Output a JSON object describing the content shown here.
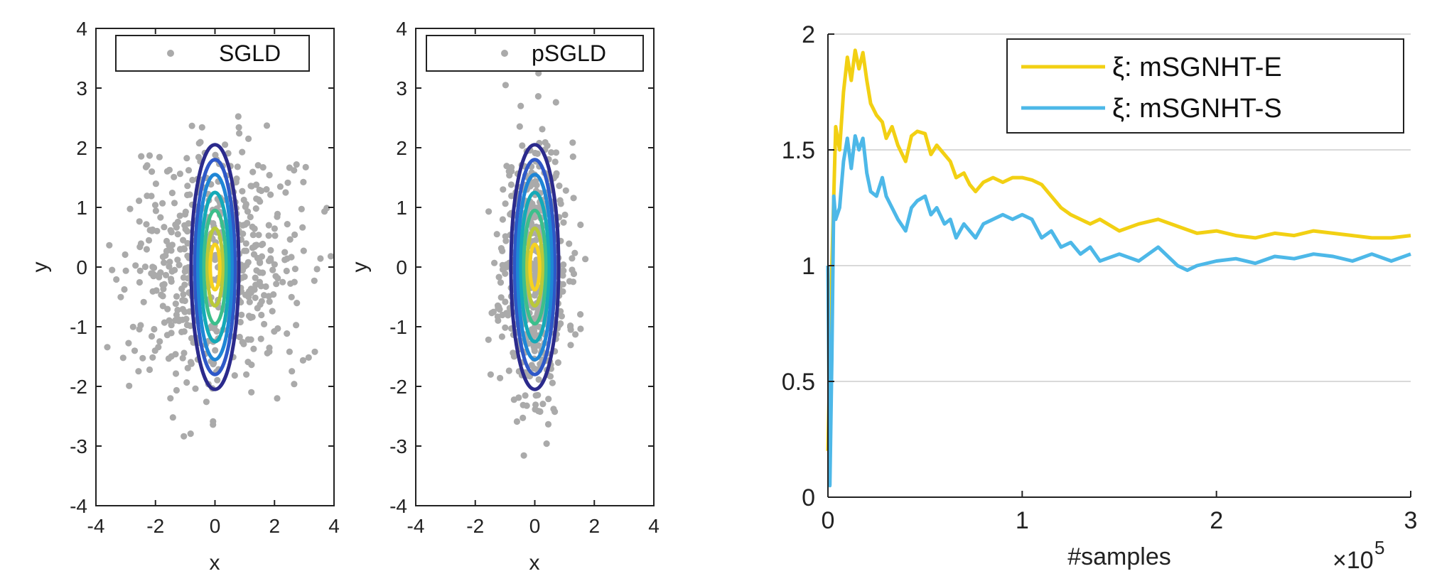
{
  "chart_data": [
    {
      "type": "scatter",
      "panel": "left",
      "xlabel": "x",
      "ylabel": "y",
      "xlim": [
        -4,
        4
      ],
      "ylim": [
        -4,
        4
      ],
      "xticks": [
        "-4",
        "-2",
        "0",
        "2",
        "4"
      ],
      "yticks": [
        "-4",
        "-3",
        "-2",
        "-1",
        "0",
        "1",
        "2",
        "3",
        "4"
      ],
      "legend": {
        "label": "SGLD",
        "placement": "top"
      },
      "point_color": "#aaaaaa",
      "points": {
        "count": 600,
        "distribution": "gaussian",
        "mean": [
          0,
          0
        ],
        "std": [
          1.45,
          1.0
        ],
        "seed": 7
      },
      "contours": {
        "center": [
          0,
          0
        ],
        "semi_axes": [
          [
            0.8,
            2.05
          ],
          [
            0.67,
            1.8
          ],
          [
            0.57,
            1.55
          ],
          [
            0.47,
            1.25
          ],
          [
            0.37,
            0.95
          ],
          [
            0.26,
            0.65
          ],
          [
            0.16,
            0.38
          ]
        ],
        "colors": [
          "#2b2a8c",
          "#2e58c8",
          "#1f86d6",
          "#14aab8",
          "#3cbf8c",
          "#b9c93a",
          "#f6d21f"
        ]
      },
      "grid": false
    },
    {
      "type": "scatter",
      "panel": "middle",
      "xlabel": "x",
      "ylabel": "y",
      "xlim": [
        -4,
        4
      ],
      "ylim": [
        -4,
        4
      ],
      "xticks": [
        "-4",
        "-2",
        "0",
        "2",
        "4"
      ],
      "yticks": [
        "-4",
        "-3",
        "-2",
        "-1",
        "0",
        "1",
        "2",
        "3",
        "4"
      ],
      "legend": {
        "label": "pSGLD",
        "placement": "top"
      },
      "point_color": "#aaaaaa",
      "points": {
        "count": 600,
        "distribution": "gaussian",
        "mean": [
          0,
          0
        ],
        "std": [
          0.55,
          1.05
        ],
        "seed": 11
      },
      "contours": {
        "center": [
          0,
          0
        ],
        "semi_axes": [
          [
            0.8,
            2.05
          ],
          [
            0.67,
            1.8
          ],
          [
            0.57,
            1.55
          ],
          [
            0.47,
            1.25
          ],
          [
            0.37,
            0.95
          ],
          [
            0.26,
            0.65
          ],
          [
            0.16,
            0.38
          ]
        ],
        "colors": [
          "#2b2a8c",
          "#2e58c8",
          "#1f86d6",
          "#14aab8",
          "#3cbf8c",
          "#b9c93a",
          "#f6d21f"
        ]
      },
      "grid": false
    },
    {
      "type": "line",
      "panel": "right",
      "xlabel": "#samples",
      "x_multiplier": "×10",
      "x_multiplier_exp": "5",
      "xlim": [
        0,
        3
      ],
      "ylim": [
        0,
        2
      ],
      "xticks": [
        "0",
        "1",
        "2",
        "3"
      ],
      "yticks": [
        "0",
        "0.5",
        "1",
        "1.5",
        "2"
      ],
      "grid": "horizontal",
      "legend_placement": "top-right",
      "series": [
        {
          "name": "ξ: mSGNHT-E",
          "color": "#f2d013",
          "x": [
            0,
            0.02,
            0.04,
            0.06,
            0.08,
            0.1,
            0.12,
            0.14,
            0.16,
            0.18,
            0.2,
            0.22,
            0.25,
            0.28,
            0.3,
            0.33,
            0.36,
            0.4,
            0.43,
            0.46,
            0.5,
            0.53,
            0.56,
            0.6,
            0.63,
            0.66,
            0.7,
            0.73,
            0.76,
            0.8,
            0.85,
            0.9,
            0.95,
            1.0,
            1.05,
            1.1,
            1.15,
            1.2,
            1.25,
            1.3,
            1.35,
            1.4,
            1.5,
            1.6,
            1.7,
            1.8,
            1.9,
            2.0,
            2.1,
            2.2,
            2.3,
            2.4,
            2.5,
            2.6,
            2.7,
            2.8,
            2.9,
            3.0
          ],
          "y": [
            0.2,
            1.0,
            1.6,
            1.5,
            1.75,
            1.9,
            1.8,
            1.93,
            1.85,
            1.92,
            1.8,
            1.7,
            1.65,
            1.62,
            1.55,
            1.6,
            1.52,
            1.45,
            1.56,
            1.58,
            1.57,
            1.48,
            1.52,
            1.48,
            1.45,
            1.38,
            1.4,
            1.35,
            1.32,
            1.36,
            1.38,
            1.36,
            1.38,
            1.38,
            1.37,
            1.35,
            1.3,
            1.25,
            1.22,
            1.2,
            1.18,
            1.2,
            1.15,
            1.18,
            1.2,
            1.17,
            1.14,
            1.15,
            1.13,
            1.12,
            1.14,
            1.13,
            1.15,
            1.14,
            1.13,
            1.12,
            1.12,
            1.13
          ]
        },
        {
          "name": "ξ: mSGNHT-S",
          "color": "#4db8e8",
          "x": [
            0,
            0.01,
            0.02,
            0.03,
            0.04,
            0.06,
            0.08,
            0.1,
            0.12,
            0.14,
            0.16,
            0.18,
            0.2,
            0.22,
            0.25,
            0.28,
            0.3,
            0.33,
            0.36,
            0.4,
            0.43,
            0.46,
            0.5,
            0.53,
            0.56,
            0.6,
            0.63,
            0.66,
            0.7,
            0.73,
            0.76,
            0.8,
            0.85,
            0.9,
            0.95,
            1.0,
            1.05,
            1.1,
            1.15,
            1.2,
            1.25,
            1.3,
            1.35,
            1.4,
            1.5,
            1.6,
            1.7,
            1.8,
            1.85,
            1.9,
            2.0,
            2.1,
            2.2,
            2.3,
            2.4,
            2.5,
            2.6,
            2.7,
            2.8,
            2.9,
            3.0
          ],
          "y": [
            1.0,
            0.05,
            0.6,
            1.3,
            1.2,
            1.25,
            1.45,
            1.55,
            1.42,
            1.56,
            1.5,
            1.55,
            1.4,
            1.32,
            1.3,
            1.38,
            1.3,
            1.25,
            1.2,
            1.15,
            1.25,
            1.28,
            1.3,
            1.22,
            1.25,
            1.18,
            1.2,
            1.12,
            1.18,
            1.15,
            1.12,
            1.18,
            1.2,
            1.22,
            1.2,
            1.22,
            1.2,
            1.12,
            1.15,
            1.08,
            1.1,
            1.05,
            1.08,
            1.02,
            1.05,
            1.02,
            1.08,
            1.0,
            0.98,
            1.0,
            1.02,
            1.03,
            1.01,
            1.04,
            1.03,
            1.05,
            1.04,
            1.02,
            1.05,
            1.02,
            1.05
          ]
        }
      ]
    }
  ]
}
